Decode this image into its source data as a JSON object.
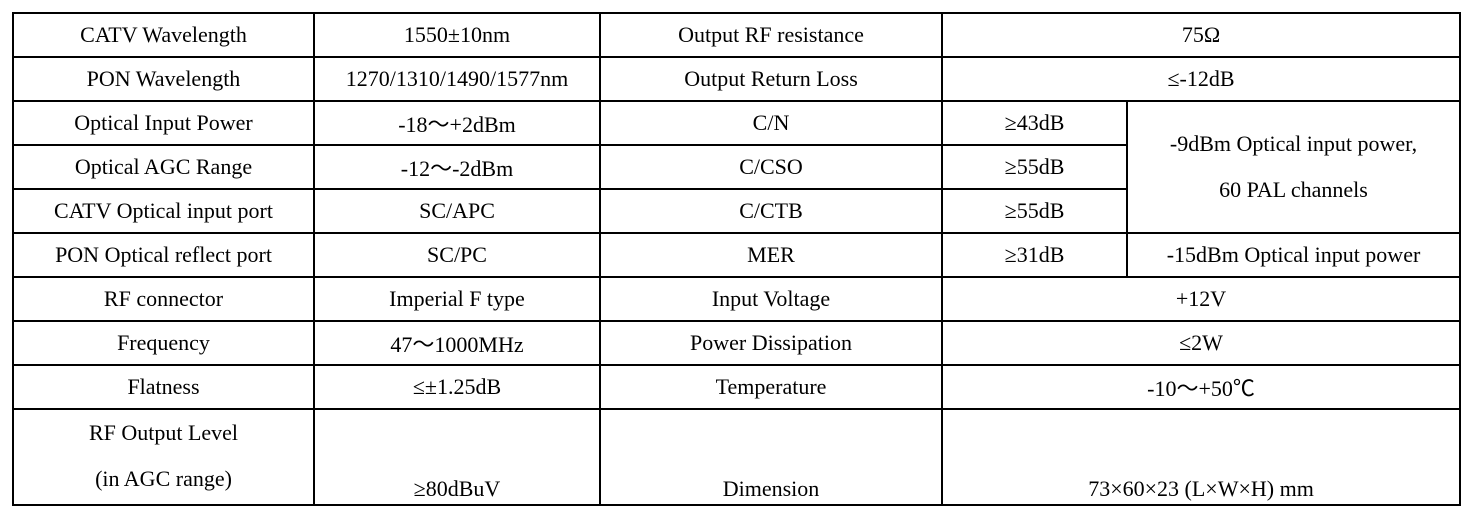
{
  "table": {
    "rows": [
      [
        "CATV Wavelength",
        "1550±10nm",
        "Output RF resistance",
        "75Ω"
      ],
      [
        "PON Wavelength",
        "1270/1310/1490/1577nm",
        "Output Return Loss",
        "≤-12dB"
      ],
      [
        "Optical Input Power",
        "-18～+2dBm",
        "C/N",
        "≥43dB",
        [
          "-9dBm Optical input power,",
          "60 PAL channels"
        ]
      ],
      [
        "Optical AGC Range",
        "-12～-2dBm",
        "C/CSO",
        "≥55dB"
      ],
      [
        "CATV Optical input port",
        "SC/APC",
        "C/CTB",
        "≥55dB"
      ],
      [
        "PON Optical reflect port",
        "SC/PC",
        "MER",
        "≥31dB",
        "-15dBm Optical input power"
      ],
      [
        "RF connector",
        "Imperial F type",
        "Input Voltage",
        "+12V"
      ],
      [
        "Frequency",
        "47～1000MHz",
        "Power Dissipation",
        "≤2W"
      ],
      [
        "Flatness",
        "≤±1.25dB",
        "Temperature",
        "-10～+50℃"
      ],
      [
        [
          "RF Output Level",
          "(in AGC range)"
        ],
        "≥80dBuV",
        "Dimension",
        "73×60×23 (L×W×H) mm"
      ]
    ]
  }
}
